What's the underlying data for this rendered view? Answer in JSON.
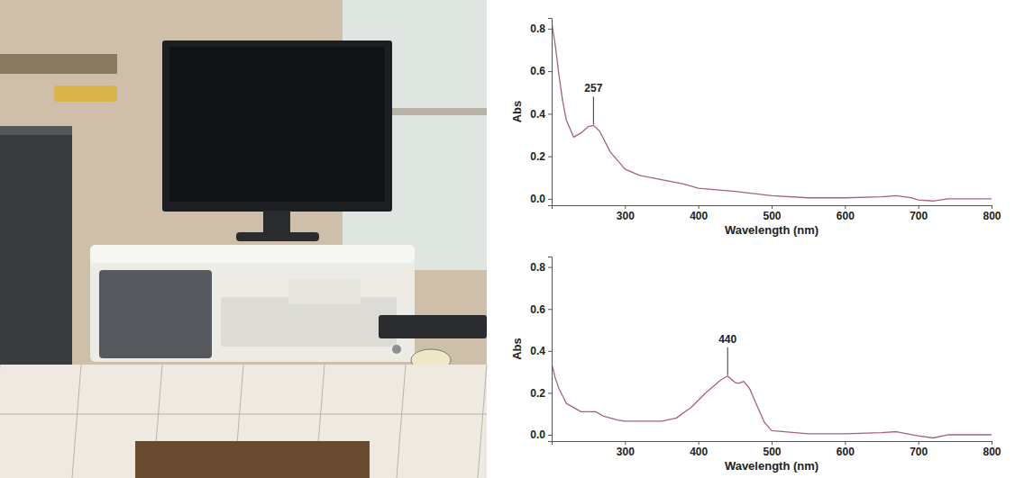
{
  "chart_data": [
    {
      "type": "line",
      "x_label": "Wavelength (nm)",
      "y_label": "Abs",
      "x": [
        200,
        205,
        210,
        215,
        220,
        230,
        240,
        250,
        257,
        265,
        280,
        300,
        320,
        350,
        380,
        400,
        450,
        500,
        550,
        600,
        650,
        670,
        690,
        700,
        720,
        740,
        800
      ],
      "series": [
        {
          "color": "#a8646e",
          "values": [
            0.83,
            0.72,
            0.58,
            0.46,
            0.37,
            0.29,
            0.31,
            0.34,
            0.345,
            0.32,
            0.22,
            0.14,
            0.11,
            0.09,
            0.07,
            0.05,
            0.035,
            0.015,
            0.005,
            0.005,
            0.01,
            0.015,
            0.005,
            -0.005,
            -0.01,
            0.0,
            0.0
          ]
        }
      ],
      "xlim": [
        200,
        800
      ],
      "xticks": [
        300,
        400,
        500,
        600,
        700,
        800
      ],
      "ylim": [
        -0.03,
        0.85
      ],
      "yticks": [
        {
          "value": 0,
          "label": "0.0"
        },
        0.2,
        0.4,
        0.6,
        0.8
      ],
      "grid": false,
      "annotations": [
        {
          "label": "257",
          "x": 257,
          "y": 0.345
        }
      ]
    },
    {
      "type": "line",
      "x_label": "Wavelength (nm)",
      "y_label": "Abs",
      "x": [
        200,
        205,
        210,
        220,
        240,
        260,
        270,
        290,
        300,
        350,
        370,
        390,
        410,
        430,
        440,
        450,
        455,
        462,
        470,
        480,
        490,
        500,
        550,
        600,
        650,
        670,
        700,
        720,
        740,
        800
      ],
      "series": [
        {
          "color": "#a8646e",
          "values": [
            0.34,
            0.27,
            0.22,
            0.15,
            0.11,
            0.11,
            0.09,
            0.07,
            0.065,
            0.065,
            0.08,
            0.13,
            0.2,
            0.26,
            0.28,
            0.25,
            0.245,
            0.255,
            0.22,
            0.14,
            0.06,
            0.02,
            0.005,
            0.005,
            0.01,
            0.015,
            -0.005,
            -0.015,
            0.0,
            0.0
          ]
        }
      ],
      "xlim": [
        200,
        800
      ],
      "xticks": [
        300,
        400,
        500,
        600,
        700,
        800
      ],
      "ylim": [
        -0.03,
        0.85
      ],
      "yticks": [
        {
          "value": 0,
          "label": "0.0"
        },
        0.2,
        0.4,
        0.6,
        0.8
      ],
      "grid": false,
      "annotations": [
        {
          "label": "440",
          "x": 440,
          "y": 0.28
        }
      ]
    }
  ]
}
